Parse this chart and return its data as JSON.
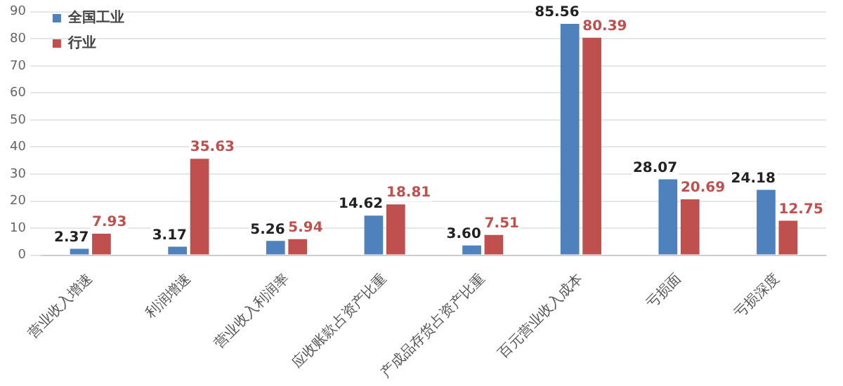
{
  "chart_data": {
    "type": "bar",
    "categories": [
      "营业收入增速",
      "利润增速",
      "营业收入利润率",
      "应收账款占资产比重",
      "产成品存货占资产比重",
      "百元营业收入成本",
      "亏损面",
      "亏损深度"
    ],
    "series": [
      {
        "name": "全国工业",
        "color": "#4f81bd",
        "values": [
          2.37,
          3.17,
          5.26,
          14.62,
          3.6,
          85.56,
          28.07,
          24.18
        ]
      },
      {
        "name": "行业",
        "color": "#c0504d",
        "values": [
          7.93,
          35.63,
          5.94,
          18.81,
          7.51,
          80.39,
          20.69,
          12.75
        ]
      }
    ],
    "ylim": [
      0,
      90
    ],
    "yticks": [
      0,
      10,
      20,
      30,
      40,
      50,
      60,
      70,
      80,
      90
    ],
    "grid": "y",
    "legend": "top left",
    "value_labels": [
      [
        "2.37",
        "3.17",
        "5.26",
        "14.62",
        "3.60",
        "85.56",
        "28.07",
        "24.18"
      ],
      [
        "7.93",
        "35.63",
        "5.94",
        "18.81",
        "7.51",
        "80.39",
        "20.69",
        "12.75"
      ]
    ]
  }
}
